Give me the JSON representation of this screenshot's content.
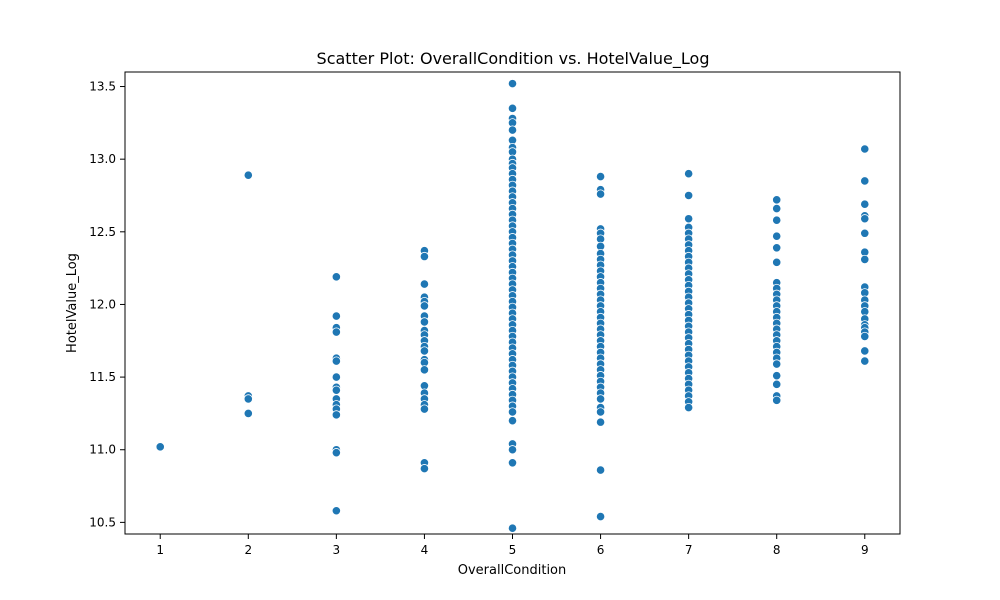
{
  "chart_data": {
    "type": "scatter",
    "title": "Scatter Plot: OverallCondition vs. HotelValue_Log",
    "xlabel": "OverallCondition",
    "ylabel": "HotelValue_Log",
    "xlim": [
      0.6,
      9.4
    ],
    "ylim": [
      10.42,
      13.6
    ],
    "xticks": [
      1,
      2,
      3,
      4,
      5,
      6,
      7,
      8,
      9
    ],
    "xtick_labels": [
      "1",
      "2",
      "3",
      "4",
      "5",
      "6",
      "7",
      "8",
      "9"
    ],
    "yticks": [
      10.5,
      11.0,
      11.5,
      12.0,
      12.5,
      13.0,
      13.5
    ],
    "ytick_labels": [
      "10.5",
      "11.0",
      "11.5",
      "12.0",
      "12.5",
      "13.0",
      "13.5"
    ],
    "grid": false,
    "color": "#1f77b4",
    "series": [
      {
        "points": [
          [
            1,
            11.02
          ],
          [
            2,
            12.89
          ],
          [
            2,
            11.37
          ],
          [
            2,
            11.35
          ],
          [
            2,
            11.25
          ],
          [
            3,
            12.19
          ],
          [
            3,
            11.92
          ],
          [
            3,
            11.84
          ],
          [
            3,
            11.81
          ],
          [
            3,
            11.63
          ],
          [
            3,
            11.61
          ],
          [
            3,
            11.5
          ],
          [
            3,
            11.43
          ],
          [
            3,
            11.41
          ],
          [
            3,
            11.35
          ],
          [
            3,
            11.31
          ],
          [
            3,
            11.28
          ],
          [
            3,
            11.24
          ],
          [
            3,
            11.0
          ],
          [
            3,
            10.98
          ],
          [
            3,
            10.58
          ],
          [
            4,
            12.37
          ],
          [
            4,
            12.33
          ],
          [
            4,
            12.14
          ],
          [
            4,
            12.05
          ],
          [
            4,
            12.02
          ],
          [
            4,
            11.99
          ],
          [
            4,
            11.92
          ],
          [
            4,
            11.88
          ],
          [
            4,
            11.82
          ],
          [
            4,
            11.79
          ],
          [
            4,
            11.75
          ],
          [
            4,
            11.71
          ],
          [
            4,
            11.68
          ],
          [
            4,
            11.62
          ],
          [
            4,
            11.6
          ],
          [
            4,
            11.55
          ],
          [
            4,
            11.44
          ],
          [
            4,
            11.39
          ],
          [
            4,
            11.35
          ],
          [
            4,
            11.31
          ],
          [
            4,
            11.28
          ],
          [
            4,
            10.91
          ],
          [
            4,
            10.87
          ],
          [
            5,
            13.52
          ],
          [
            5,
            13.35
          ],
          [
            5,
            13.28
          ],
          [
            5,
            13.25
          ],
          [
            5,
            13.2
          ],
          [
            5,
            13.13
          ],
          [
            5,
            13.08
          ],
          [
            5,
            13.05
          ],
          [
            5,
            13.0
          ],
          [
            5,
            12.97
          ],
          [
            5,
            12.94
          ],
          [
            5,
            12.9
          ],
          [
            5,
            12.86
          ],
          [
            5,
            12.82
          ],
          [
            5,
            12.78
          ],
          [
            5,
            12.74
          ],
          [
            5,
            12.7
          ],
          [
            5,
            12.66
          ],
          [
            5,
            12.62
          ],
          [
            5,
            12.58
          ],
          [
            5,
            12.54
          ],
          [
            5,
            12.5
          ],
          [
            5,
            12.46
          ],
          [
            5,
            12.42
          ],
          [
            5,
            12.38
          ],
          [
            5,
            12.34
          ],
          [
            5,
            12.3
          ],
          [
            5,
            12.26
          ],
          [
            5,
            12.22
          ],
          [
            5,
            12.18
          ],
          [
            5,
            12.14
          ],
          [
            5,
            12.1
          ],
          [
            5,
            12.06
          ],
          [
            5,
            12.02
          ],
          [
            5,
            11.98
          ],
          [
            5,
            11.94
          ],
          [
            5,
            11.9
          ],
          [
            5,
            11.86
          ],
          [
            5,
            11.82
          ],
          [
            5,
            11.78
          ],
          [
            5,
            11.74
          ],
          [
            5,
            11.7
          ],
          [
            5,
            11.66
          ],
          [
            5,
            11.62
          ],
          [
            5,
            11.58
          ],
          [
            5,
            11.54
          ],
          [
            5,
            11.5
          ],
          [
            5,
            11.46
          ],
          [
            5,
            11.42
          ],
          [
            5,
            11.38
          ],
          [
            5,
            11.34
          ],
          [
            5,
            11.3
          ],
          [
            5,
            11.26
          ],
          [
            5,
            11.2
          ],
          [
            5,
            11.04
          ],
          [
            5,
            11.0
          ],
          [
            5,
            10.91
          ],
          [
            5,
            10.46
          ],
          [
            6,
            12.88
          ],
          [
            6,
            12.79
          ],
          [
            6,
            12.76
          ],
          [
            6,
            12.52
          ],
          [
            6,
            12.49
          ],
          [
            6,
            12.45
          ],
          [
            6,
            12.4
          ],
          [
            6,
            12.35
          ],
          [
            6,
            12.31
          ],
          [
            6,
            12.27
          ],
          [
            6,
            12.23
          ],
          [
            6,
            12.19
          ],
          [
            6,
            12.15
          ],
          [
            6,
            12.11
          ],
          [
            6,
            12.07
          ],
          [
            6,
            12.03
          ],
          [
            6,
            11.99
          ],
          [
            6,
            11.95
          ],
          [
            6,
            11.91
          ],
          [
            6,
            11.87
          ],
          [
            6,
            11.83
          ],
          [
            6,
            11.79
          ],
          [
            6,
            11.75
          ],
          [
            6,
            11.71
          ],
          [
            6,
            11.67
          ],
          [
            6,
            11.63
          ],
          [
            6,
            11.59
          ],
          [
            6,
            11.55
          ],
          [
            6,
            11.51
          ],
          [
            6,
            11.47
          ],
          [
            6,
            11.43
          ],
          [
            6,
            11.39
          ],
          [
            6,
            11.35
          ],
          [
            6,
            11.29
          ],
          [
            6,
            11.26
          ],
          [
            6,
            11.19
          ],
          [
            6,
            10.86
          ],
          [
            6,
            10.54
          ],
          [
            7,
            12.9
          ],
          [
            7,
            12.75
          ],
          [
            7,
            12.59
          ],
          [
            7,
            12.53
          ],
          [
            7,
            12.49
          ],
          [
            7,
            12.45
          ],
          [
            7,
            12.41
          ],
          [
            7,
            12.37
          ],
          [
            7,
            12.33
          ],
          [
            7,
            12.29
          ],
          [
            7,
            12.25
          ],
          [
            7,
            12.21
          ],
          [
            7,
            12.17
          ],
          [
            7,
            12.13
          ],
          [
            7,
            12.09
          ],
          [
            7,
            12.05
          ],
          [
            7,
            12.01
          ],
          [
            7,
            11.97
          ],
          [
            7,
            11.93
          ],
          [
            7,
            11.89
          ],
          [
            7,
            11.85
          ],
          [
            7,
            11.81
          ],
          [
            7,
            11.77
          ],
          [
            7,
            11.73
          ],
          [
            7,
            11.69
          ],
          [
            7,
            11.65
          ],
          [
            7,
            11.61
          ],
          [
            7,
            11.57
          ],
          [
            7,
            11.53
          ],
          [
            7,
            11.49
          ],
          [
            7,
            11.45
          ],
          [
            7,
            11.41
          ],
          [
            7,
            11.37
          ],
          [
            7,
            11.33
          ],
          [
            7,
            11.29
          ],
          [
            8,
            12.72
          ],
          [
            8,
            12.66
          ],
          [
            8,
            12.58
          ],
          [
            8,
            12.47
          ],
          [
            8,
            12.39
          ],
          [
            8,
            12.29
          ],
          [
            8,
            12.15
          ],
          [
            8,
            12.11
          ],
          [
            8,
            12.07
          ],
          [
            8,
            12.03
          ],
          [
            8,
            11.99
          ],
          [
            8,
            11.95
          ],
          [
            8,
            11.91
          ],
          [
            8,
            11.87
          ],
          [
            8,
            11.83
          ],
          [
            8,
            11.79
          ],
          [
            8,
            11.75
          ],
          [
            8,
            11.71
          ],
          [
            8,
            11.67
          ],
          [
            8,
            11.63
          ],
          [
            8,
            11.59
          ],
          [
            8,
            11.51
          ],
          [
            8,
            11.45
          ],
          [
            8,
            11.37
          ],
          [
            8,
            11.34
          ],
          [
            9,
            13.07
          ],
          [
            9,
            12.85
          ],
          [
            9,
            12.69
          ],
          [
            9,
            12.61
          ],
          [
            9,
            12.59
          ],
          [
            9,
            12.49
          ],
          [
            9,
            12.36
          ],
          [
            9,
            12.31
          ],
          [
            9,
            12.12
          ],
          [
            9,
            12.08
          ],
          [
            9,
            12.03
          ],
          [
            9,
            11.99
          ],
          [
            9,
            11.95
          ],
          [
            9,
            11.9
          ],
          [
            9,
            11.86
          ],
          [
            9,
            11.84
          ],
          [
            9,
            11.81
          ],
          [
            9,
            11.78
          ],
          [
            9,
            11.68
          ],
          [
            9,
            11.61
          ]
        ]
      }
    ]
  }
}
